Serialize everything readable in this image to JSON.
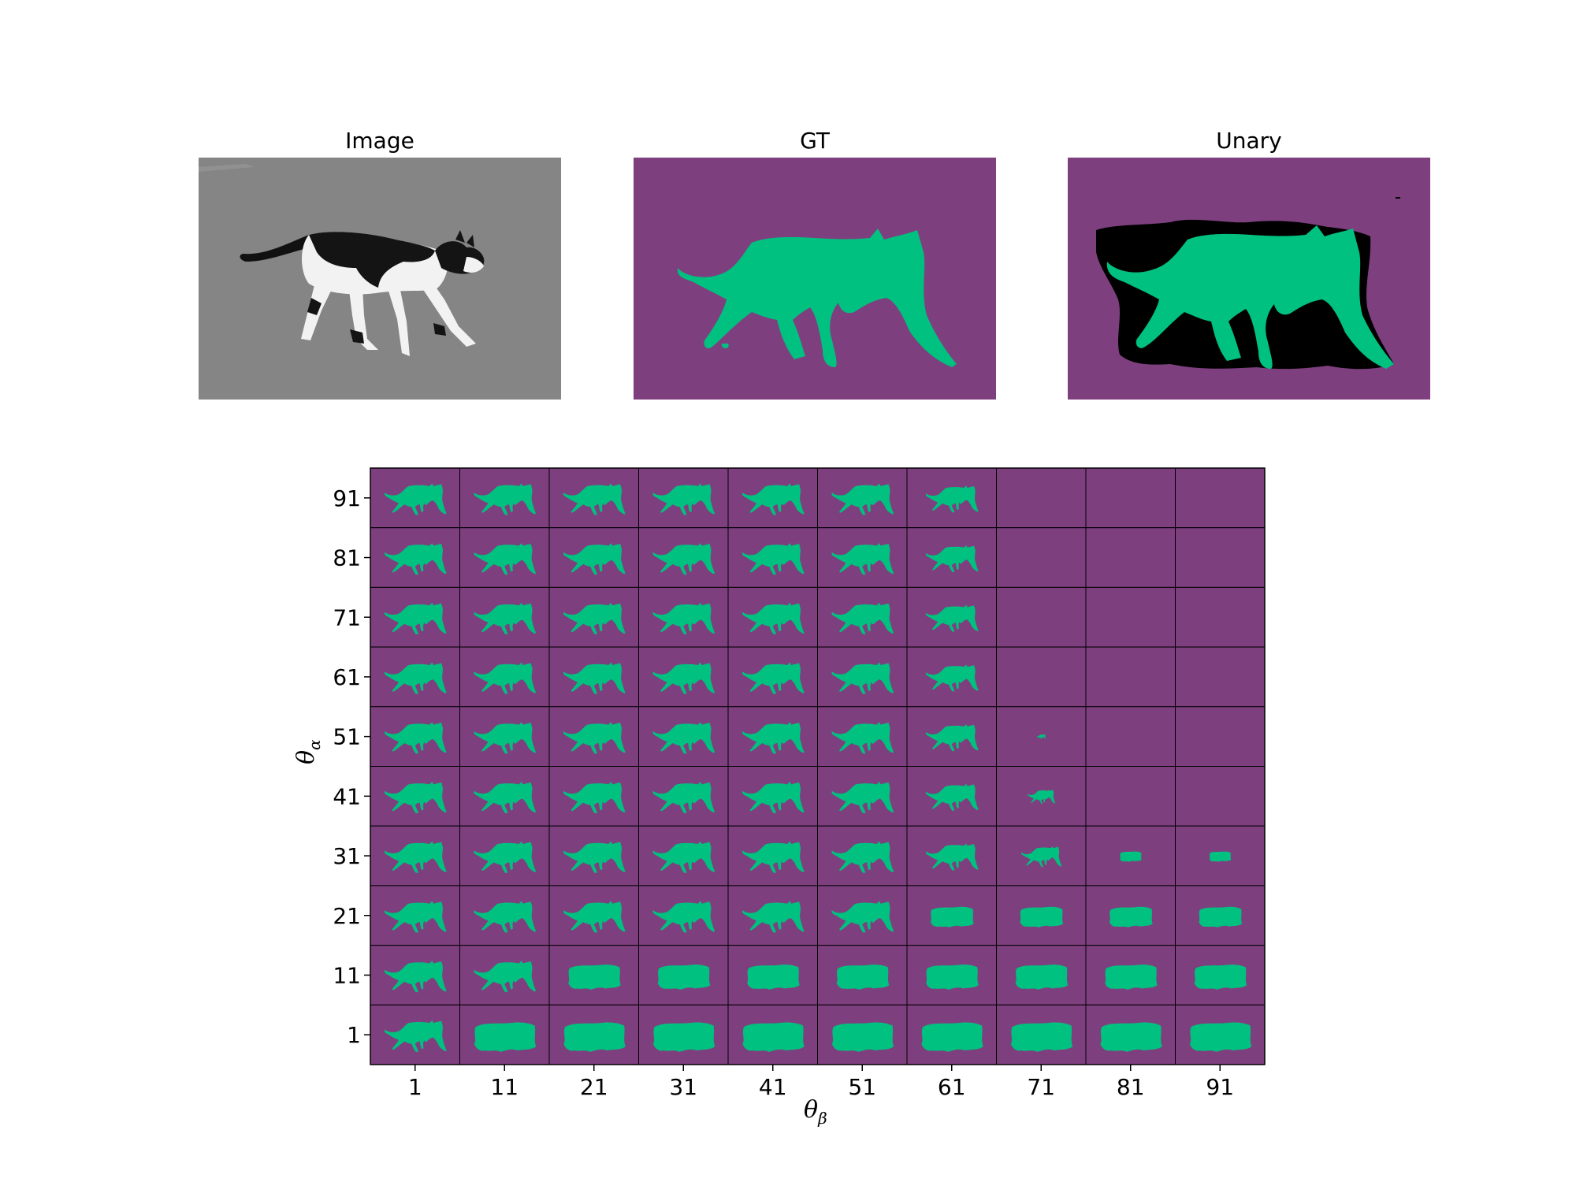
{
  "panels": {
    "image_title": "Image",
    "gt_title": "GT",
    "unary_title": "Unary"
  },
  "colors": {
    "background_label": "#7e3f7f",
    "foreground_label": "#00c17f",
    "unlabeled": "#000000",
    "road": "#858585"
  },
  "chart_data": {
    "type": "heatmap",
    "title": "",
    "xlabel": "θ_β",
    "ylabel": "θ_α",
    "x_ticks": [
      1,
      11,
      21,
      31,
      41,
      51,
      61,
      71,
      81,
      91
    ],
    "y_ticks": [
      91,
      81,
      71,
      61,
      51,
      41,
      31,
      21,
      11,
      1
    ],
    "cell_content": "segmentation mask (cat = foreground, rest = background)",
    "foreground_fraction_note": "cells with theta_beta >= 71 and theta_alpha >= 61, plus theta_beta >= 81 and theta_alpha >= 41, show no foreground",
    "grid": true
  }
}
